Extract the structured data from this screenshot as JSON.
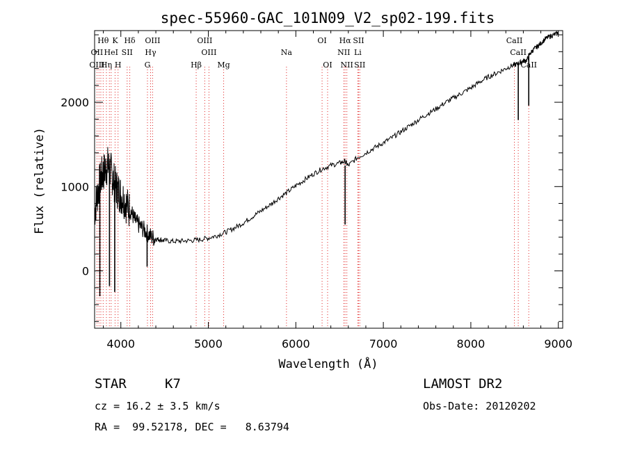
{
  "chart_data": {
    "type": "line",
    "title": "spec-55960-GAC_101N09_V2_sp02-199.fits",
    "xlabel": "Wavelength (Å)",
    "ylabel": "Flux (relative)",
    "xlim": [
      3700,
      9050
    ],
    "ylim": [
      -680,
      2850
    ],
    "x_ticks": [
      4000,
      5000,
      6000,
      7000,
      8000,
      9000
    ],
    "y_ticks": [
      0,
      1000,
      2000
    ],
    "grid": false,
    "series": [
      {
        "name": "spectrum",
        "x": [
          3700,
          3730,
          3760,
          3790,
          3820,
          3850,
          3880,
          3910,
          3940,
          3970,
          4000,
          4040,
          4080,
          4120,
          4160,
          4200,
          4250,
          4300,
          4350,
          4400,
          4450,
          4500,
          4600,
          4700,
          4800,
          4900,
          5000,
          5100,
          5200,
          5300,
          5400,
          5500,
          5600,
          5700,
          5800,
          5900,
          6000,
          6100,
          6200,
          6300,
          6400,
          6500,
          6560,
          6600,
          6700,
          6800,
          6900,
          7000,
          7100,
          7200,
          7300,
          7400,
          7500,
          7600,
          7700,
          7800,
          7900,
          8000,
          8100,
          8200,
          8300,
          8400,
          8480,
          8520,
          8560,
          8600,
          8640,
          8680,
          8720,
          8760,
          8800,
          8850,
          8900,
          8950,
          9000
        ],
        "y": [
          700,
          900,
          1050,
          1150,
          1200,
          1250,
          1200,
          1100,
          1000,
          950,
          900,
          850,
          750,
          700,
          600,
          550,
          500,
          450,
          400,
          380,
          370,
          360,
          350,
          355,
          360,
          370,
          390,
          420,
          460,
          510,
          570,
          640,
          710,
          780,
          860,
          930,
          1010,
          1080,
          1150,
          1210,
          1250,
          1280,
          1300,
          1250,
          1340,
          1400,
          1460,
          1520,
          1580,
          1650,
          1720,
          1790,
          1860,
          1920,
          1990,
          2050,
          2110,
          2170,
          2240,
          2300,
          2350,
          2400,
          2440,
          2450,
          2470,
          2490,
          2500,
          2580,
          2630,
          2660,
          2700,
          2750,
          2780,
          2800,
          2820
        ]
      }
    ],
    "absorption_dips": [
      {
        "x": 6563,
        "y": 550
      },
      {
        "x": 8542,
        "y": 1790
      },
      {
        "x": 8662,
        "y": 1960
      },
      {
        "x": 3760,
        "y": -300
      },
      {
        "x": 3870,
        "y": -180
      },
      {
        "x": 3930,
        "y": -250
      },
      {
        "x": 4300,
        "y": 50
      }
    ],
    "line_labels": [
      {
        "label": "Hθ",
        "wavelength": 3798,
        "row": 1
      },
      {
        "label": "K",
        "wavelength": 3934,
        "row": 1
      },
      {
        "label": "Hδ",
        "wavelength": 4102,
        "row": 1
      },
      {
        "label": "OIII",
        "wavelength": 4363,
        "row": 1
      },
      {
        "label": "OIII",
        "wavelength": 4959,
        "row": 1
      },
      {
        "label": "OI",
        "wavelength": 6300,
        "row": 1
      },
      {
        "label": "Hα",
        "wavelength": 6563,
        "row": 1
      },
      {
        "label": "SII",
        "wavelength": 6717,
        "row": 1
      },
      {
        "label": "CaII",
        "wavelength": 8498,
        "row": 1
      },
      {
        "label": "OII",
        "wavelength": 3727,
        "row": 2
      },
      {
        "label": "HeI",
        "wavelength": 3889,
        "row": 2
      },
      {
        "label": "SII",
        "wavelength": 4072,
        "row": 2
      },
      {
        "label": "Hγ",
        "wavelength": 4340,
        "row": 2
      },
      {
        "label": "OIII",
        "wavelength": 5007,
        "row": 2
      },
      {
        "label": "Na",
        "wavelength": 5893,
        "row": 2
      },
      {
        "label": "NII",
        "wavelength": 6548,
        "row": 2
      },
      {
        "label": "Li",
        "wavelength": 6708,
        "row": 2
      },
      {
        "label": "CaII",
        "wavelength": 8542,
        "row": 2
      },
      {
        "label": "OIII",
        "wavelength": 3727,
        "row": 3
      },
      {
        "label": "Hη",
        "wavelength": 3835,
        "row": 3
      },
      {
        "label": "H",
        "wavelength": 3968,
        "row": 3
      },
      {
        "label": "G",
        "wavelength": 4304,
        "row": 3
      },
      {
        "label": "Hβ",
        "wavelength": 4861,
        "row": 3
      },
      {
        "label": "Mg",
        "wavelength": 5175,
        "row": 3
      },
      {
        "label": "OI",
        "wavelength": 6363,
        "row": 3
      },
      {
        "label": "NII",
        "wavelength": 6583,
        "row": 3
      },
      {
        "label": "SII",
        "wavelength": 6731,
        "row": 3
      },
      {
        "label": "CaII",
        "wavelength": 8662,
        "row": 3
      }
    ],
    "line_markers": [
      3727,
      3750,
      3771,
      3798,
      3835,
      3869,
      3889,
      3934,
      3968,
      4072,
      4102,
      4304,
      4340,
      4363,
      4861,
      4959,
      5007,
      5175,
      5893,
      6300,
      6363,
      6548,
      6563,
      6583,
      6708,
      6717,
      6731,
      8498,
      8542,
      8662
    ]
  },
  "info": {
    "object_class": "STAR",
    "subclass": "K7",
    "redshift": "cz = 16.2 ± 3.5 km/s",
    "coords": "RA =  99.52178, DEC =   8.63794",
    "survey": "LAMOST DR2",
    "obs_date": "Obs-Date: 20120202"
  }
}
